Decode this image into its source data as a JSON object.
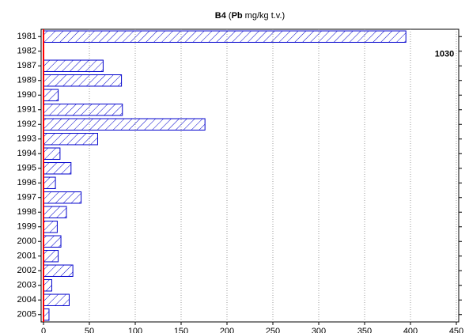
{
  "chart_data": {
    "type": "hbar",
    "title_parts": [
      {
        "text": "B4",
        "bold": true
      },
      {
        "text": " (",
        "bold": false
      },
      {
        "text": "Pb",
        "bold": true
      },
      {
        "text": " mg/kg t.v.)",
        "bold": false
      }
    ],
    "categories": [
      "1981",
      "1982",
      "1987",
      "1989",
      "1990",
      "1991",
      "1992",
      "1993",
      "1994",
      "1995",
      "1996",
      "1997",
      "1998",
      "1999",
      "2000",
      "2001",
      "2002",
      "2003",
      "2004",
      "2005"
    ],
    "values": [
      395,
      null,
      65,
      85,
      16,
      86,
      176,
      59,
      18,
      30,
      13,
      41,
      25,
      15,
      19,
      16,
      32,
      9,
      28,
      6
    ],
    "color": "#0000cc",
    "zero_line_color": "#ff0000",
    "annotation": "1030",
    "xlim": [
      0,
      450
    ],
    "xticks": [
      0,
      50,
      100,
      150,
      200,
      250,
      300,
      350,
      400,
      450
    ],
    "grid": true
  }
}
